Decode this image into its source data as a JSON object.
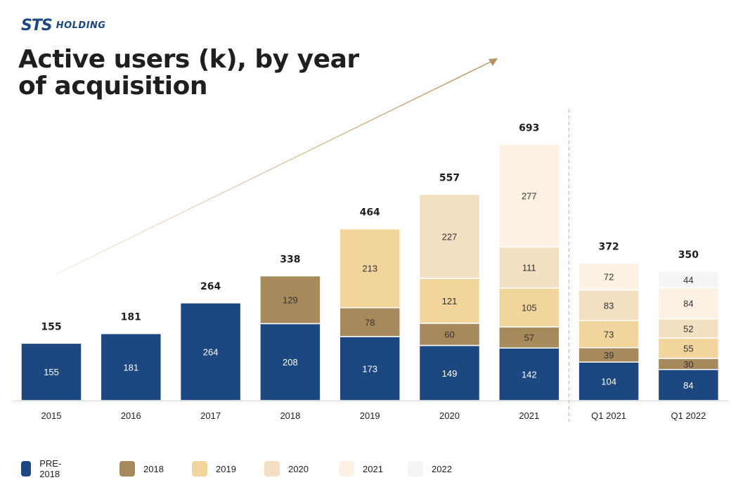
{
  "brand": {
    "mark": "STS",
    "name": "HOLDING"
  },
  "title": "Active users (k), by year of acquisition",
  "colors": {
    "PRE-2018": "#1c4780",
    "2018": "#a68a5b",
    "2019": "#f2d59c",
    "2020": "#f3dfc2",
    "2021": "#fdf1e4",
    "2022": "#f5f5f5"
  },
  "chart_data": {
    "type": "bar",
    "stacked": true,
    "title": "Active users (k), by year of acquisition",
    "categories": [
      "2015",
      "2016",
      "2017",
      "2018",
      "2019",
      "2020",
      "2021",
      "Q1 2021",
      "Q1 2022"
    ],
    "series": [
      {
        "name": "PRE-2018",
        "values": [
          155,
          181,
          264,
          208,
          173,
          149,
          142,
          104,
          84
        ]
      },
      {
        "name": "2018",
        "values": [
          null,
          null,
          null,
          129,
          78,
          60,
          57,
          39,
          30
        ]
      },
      {
        "name": "2019",
        "values": [
          null,
          null,
          null,
          null,
          213,
          121,
          105,
          73,
          55
        ]
      },
      {
        "name": "2020",
        "values": [
          null,
          null,
          null,
          null,
          null,
          227,
          111,
          83,
          52
        ]
      },
      {
        "name": "2021",
        "values": [
          null,
          null,
          null,
          null,
          null,
          null,
          277,
          72,
          84
        ]
      },
      {
        "name": "2022",
        "values": [
          null,
          null,
          null,
          null,
          null,
          null,
          null,
          null,
          44
        ]
      }
    ],
    "totals": [
      155,
      181,
      264,
      338,
      464,
      557,
      693,
      372,
      350
    ],
    "ylim": [
      0,
      693
    ],
    "legend_position": "bottom",
    "grid": false,
    "separator_after_category": "2021",
    "trend_arrow": true
  }
}
